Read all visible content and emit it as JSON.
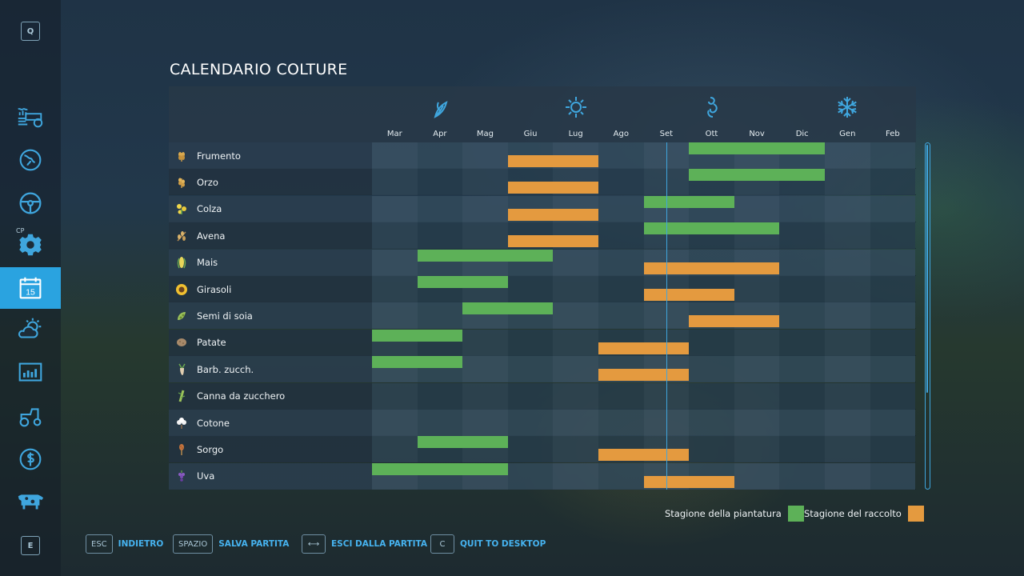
{
  "sidebar": {
    "top_key": "Q",
    "bottom_key": "E",
    "cp_tag": "CP",
    "calendar_day": "15",
    "items": [
      {
        "icon": "sprayer-icon"
      },
      {
        "icon": "map-icon"
      },
      {
        "icon": "steering-wheel-icon"
      },
      {
        "icon": "gear-settings-icon"
      },
      {
        "icon": "calendar-icon",
        "active": true
      },
      {
        "icon": "weather-icon"
      },
      {
        "icon": "statistics-icon"
      },
      {
        "icon": "tractor-icon"
      },
      {
        "icon": "dollar-icon"
      },
      {
        "icon": "cow-icon"
      }
    ]
  },
  "title": "CALENDARIO COLTURE",
  "months": [
    "Mar",
    "Apr",
    "Mag",
    "Giu",
    "Lug",
    "Ago",
    "Set",
    "Ott",
    "Nov",
    "Dic",
    "Gen",
    "Feb"
  ],
  "seasons": [
    {
      "icon": "spring-leaf-icon",
      "month_index": 1
    },
    {
      "icon": "summer-sun-icon",
      "month_index": 4
    },
    {
      "icon": "autumn-icon",
      "month_index": 7
    },
    {
      "icon": "winter-snowflake-icon",
      "month_index": 10
    }
  ],
  "current_month_position": 6.5,
  "crops": [
    {
      "name": "Frumento",
      "icon": "wheat-icon",
      "plant": [
        7,
        9
      ],
      "harvest": [
        3,
        4
      ]
    },
    {
      "name": "Orzo",
      "icon": "barley-icon",
      "plant": [
        7,
        9
      ],
      "harvest": [
        3,
        4
      ]
    },
    {
      "name": "Colza",
      "icon": "canola-icon",
      "plant": [
        6,
        7
      ],
      "harvest": [
        3,
        4
      ]
    },
    {
      "name": "Avena",
      "icon": "oat-icon",
      "plant": [
        6,
        8
      ],
      "harvest": [
        3,
        4
      ]
    },
    {
      "name": "Mais",
      "icon": "maize-icon",
      "plant": [
        1,
        3
      ],
      "harvest": [
        6,
        8
      ]
    },
    {
      "name": "Girasoli",
      "icon": "sunflower-icon",
      "plant": [
        1,
        2
      ],
      "harvest": [
        6,
        7
      ]
    },
    {
      "name": "Semi di soia",
      "icon": "soybean-icon",
      "plant": [
        2,
        3
      ],
      "harvest": [
        7,
        8
      ]
    },
    {
      "name": "Patate",
      "icon": "potato-icon",
      "plant": [
        0,
        1
      ],
      "harvest": [
        5,
        6
      ]
    },
    {
      "name": "Barb. zucch.",
      "icon": "sugarbeet-icon",
      "plant": [
        0,
        1
      ],
      "harvest": [
        5,
        6
      ]
    },
    {
      "name": "Canna da zucchero",
      "icon": "sugarcane-icon",
      "plant": null,
      "harvest": null
    },
    {
      "name": "Cotone",
      "icon": "cotton-icon",
      "plant": null,
      "harvest": null
    },
    {
      "name": "Sorgo",
      "icon": "sorghum-icon",
      "plant": [
        1,
        2
      ],
      "harvest": [
        5,
        6
      ]
    },
    {
      "name": "Uva",
      "icon": "grape-icon",
      "plant": [
        0,
        2
      ],
      "harvest": [
        6,
        7
      ]
    }
  ],
  "legend": {
    "planting": "Stagione della piantatura",
    "harvest": "Stagione del raccolto"
  },
  "colors": {
    "planting": "#5db158",
    "harvest": "#e49a3f",
    "accent": "#2aa3e0"
  },
  "footer": [
    {
      "key": "ESC",
      "label": "INDIETRO"
    },
    {
      "key": "SPAZIO",
      "label": "SALVA PARTITA"
    },
    {
      "key": "⟷",
      "label": "ESCI DALLA PARTITA"
    },
    {
      "key": "C",
      "label": "QUIT TO DESKTOP"
    }
  ]
}
